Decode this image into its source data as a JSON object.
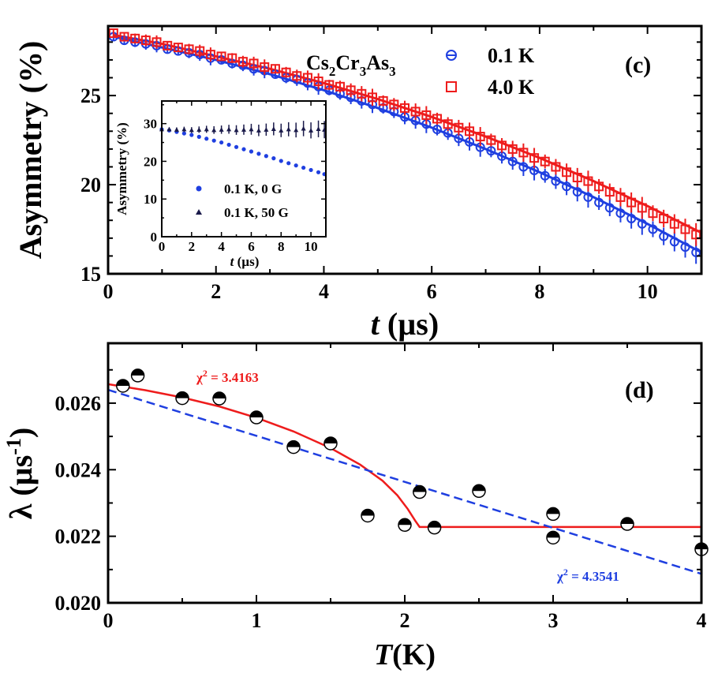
{
  "chart_data": [
    {
      "type": "scatter",
      "panel": "(c)",
      "compound": {
        "base": [
          "Cs",
          "Cr",
          "As"
        ],
        "subs": [
          "2",
          "3",
          "3"
        ]
      },
      "xlabel_italic": "t",
      "xlabel_unit": " (µs)",
      "ylabel": "Asymmetry (%)",
      "xlim": [
        0,
        11
      ],
      "ylim": [
        15,
        28.9
      ],
      "xticks": [
        0,
        2,
        4,
        6,
        8,
        10
      ],
      "yticks": [
        15,
        20,
        25
      ],
      "series": [
        {
          "name": "0.1 K",
          "color": "#1f3fe0",
          "marker": "circle-open",
          "fit": {
            "x": [
              0.1,
              1,
              2,
              3,
              4,
              5,
              6,
              7,
              8,
              9,
              10,
              11
            ],
            "y": [
              28.3,
              27.7,
              27.0,
              26.2,
              25.3,
              24.3,
              23.2,
              22.0,
              20.7,
              19.3,
              17.8,
              16.2
            ]
          },
          "x": [
            0.1,
            0.3,
            0.5,
            0.7,
            0.9,
            1.1,
            1.3,
            1.5,
            1.7,
            1.9,
            2.1,
            2.3,
            2.5,
            2.7,
            2.9,
            3.1,
            3.3,
            3.5,
            3.7,
            3.9,
            4.1,
            4.3,
            4.5,
            4.7,
            4.9,
            5.1,
            5.3,
            5.5,
            5.7,
            5.9,
            6.1,
            6.3,
            6.5,
            6.7,
            6.9,
            7.1,
            7.3,
            7.5,
            7.7,
            7.9,
            8.1,
            8.3,
            8.5,
            8.7,
            8.9,
            9.1,
            9.3,
            9.5,
            9.7,
            9.9,
            10.1,
            10.3,
            10.5,
            10.7,
            10.9
          ],
          "y": [
            28.3,
            28.1,
            28.0,
            27.9,
            27.8,
            27.6,
            27.5,
            27.4,
            27.3,
            27.1,
            27.0,
            26.8,
            26.7,
            26.5,
            26.4,
            26.2,
            26.0,
            25.9,
            25.7,
            25.5,
            25.3,
            25.1,
            24.9,
            24.7,
            24.5,
            24.3,
            24.1,
            23.8,
            23.6,
            23.4,
            23.1,
            22.9,
            22.6,
            22.4,
            22.1,
            21.9,
            21.6,
            21.3,
            21.0,
            20.8,
            20.5,
            20.2,
            19.9,
            19.6,
            19.3,
            19.0,
            18.7,
            18.4,
            18.1,
            17.8,
            17.5,
            17.1,
            16.8,
            16.5,
            16.2
          ]
        },
        {
          "name": "4.0 K",
          "color": "#ee1c1c",
          "marker": "square-open",
          "fit": {
            "x": [
              0.1,
              1,
              2,
              3,
              4,
              5,
              6,
              7,
              8,
              9,
              10,
              11
            ],
            "y": [
              28.4,
              27.9,
              27.2,
              26.5,
              25.7,
              24.8,
              23.8,
              22.7,
              21.5,
              20.2,
              18.8,
              17.3
            ]
          },
          "x": [
            0.1,
            0.3,
            0.5,
            0.7,
            0.9,
            1.1,
            1.3,
            1.5,
            1.7,
            1.9,
            2.1,
            2.3,
            2.5,
            2.7,
            2.9,
            3.1,
            3.3,
            3.5,
            3.7,
            3.9,
            4.1,
            4.3,
            4.5,
            4.7,
            4.9,
            5.1,
            5.3,
            5.5,
            5.7,
            5.9,
            6.1,
            6.3,
            6.5,
            6.7,
            6.9,
            7.1,
            7.3,
            7.5,
            7.7,
            7.9,
            8.1,
            8.3,
            8.5,
            8.7,
            8.9,
            9.1,
            9.3,
            9.5,
            9.7,
            9.9,
            10.1,
            10.3,
            10.5,
            10.7,
            10.9
          ],
          "y": [
            28.5,
            28.3,
            28.2,
            28.1,
            28.0,
            27.8,
            27.7,
            27.6,
            27.5,
            27.3,
            27.2,
            27.1,
            26.9,
            26.8,
            26.6,
            26.5,
            26.3,
            26.1,
            26.0,
            25.8,
            25.6,
            25.5,
            25.3,
            25.1,
            24.9,
            24.7,
            24.5,
            24.3,
            24.1,
            23.9,
            23.7,
            23.4,
            23.2,
            23.0,
            22.7,
            22.5,
            22.2,
            22.0,
            21.8,
            21.5,
            21.3,
            21.0,
            20.7,
            20.4,
            20.2,
            19.9,
            19.6,
            19.3,
            19.0,
            18.7,
            18.4,
            18.1,
            17.8,
            17.5,
            17.2
          ]
        }
      ]
    },
    {
      "type": "scatter",
      "panel": "inset",
      "xlabel_italic": "t",
      "xlabel_unit": " (µs)",
      "ylabel": "Asymmetry (%)",
      "xlim": [
        0,
        11
      ],
      "ylim": [
        0,
        36
      ],
      "xticks": [
        0,
        2,
        4,
        6,
        8,
        10
      ],
      "yticks": [
        0,
        10,
        20,
        30
      ],
      "series": [
        {
          "name": "0.1 K, 0 G",
          "color": "#1f3fe0",
          "marker": "circle-filled",
          "x": [
            0,
            0.5,
            1,
            1.5,
            2,
            2.5,
            3,
            3.5,
            4,
            4.5,
            5,
            5.5,
            6,
            6.5,
            7,
            7.5,
            8,
            8.5,
            9,
            9.5,
            10,
            10.5,
            10.9
          ],
          "y": [
            28.5,
            28.2,
            27.8,
            27.4,
            27.0,
            26.5,
            26.0,
            25.5,
            25.0,
            24.4,
            23.8,
            23.2,
            22.6,
            22.0,
            21.4,
            20.8,
            20.1,
            19.5,
            18.9,
            18.3,
            17.7,
            17.1,
            16.6
          ]
        },
        {
          "name": "0.1 K, 50 G",
          "color": "#1a1a4a",
          "marker": "triangle-filled",
          "x": [
            0,
            0.5,
            1,
            1.5,
            2,
            2.5,
            3,
            3.5,
            4,
            4.5,
            5,
            5.5,
            6,
            6.5,
            7,
            7.5,
            8,
            8.5,
            9,
            9.5,
            10,
            10.5,
            10.9
          ],
          "y": [
            28.5,
            28.5,
            28.4,
            28.5,
            28.3,
            28.4,
            28.5,
            28.3,
            28.4,
            28.5,
            28.3,
            28.4,
            28.5,
            28.2,
            28.4,
            28.6,
            28.2,
            28.5,
            28.3,
            28.7,
            28.2,
            28.6,
            28.4
          ]
        }
      ]
    },
    {
      "type": "scatter",
      "panel": "(d)",
      "xlabel_italic": "T",
      "xlabel_unit": "(K)",
      "ylabel": "λ (µs",
      "ylabel_sup": "-1",
      "ylabel_end": ")",
      "xlim": [
        0,
        4
      ],
      "ylim": [
        0.02,
        0.0278
      ],
      "xticks": [
        0,
        1,
        2,
        3,
        4
      ],
      "yticks": [
        0.02,
        0.022,
        0.024,
        0.026
      ],
      "ytick_labels": [
        "0.020",
        "0.022",
        "0.024",
        "0.026"
      ],
      "points": {
        "x": [
          0.1,
          0.2,
          0.5,
          0.75,
          1.0,
          1.25,
          1.5,
          1.75,
          2.0,
          2.1,
          2.2,
          2.5,
          3.0,
          3.0,
          3.5,
          4.0
        ],
        "y": [
          0.02652,
          0.02683,
          0.02615,
          0.02614,
          0.02557,
          0.02468,
          0.02479,
          0.02262,
          0.02234,
          0.02333,
          0.02226,
          0.02336,
          0.02267,
          0.02196,
          0.02237,
          0.02161
        ],
        "err": [
          0.00015,
          0.00015,
          0.00015,
          0.00015,
          0.00015,
          0.00015,
          0.00015,
          0.00015,
          0.00015,
          0.00015,
          0.00015,
          0.00015,
          0.00015,
          0.00015,
          0.00015,
          0.00015
        ]
      },
      "fits": [
        {
          "name": "χ² = 3.4163",
          "label": "χ",
          "label_sup": "2",
          "label_end": " = 3.4163",
          "color": "#ee1c1c",
          "style": "solid",
          "x": [
            0.0,
            0.25,
            0.5,
            0.75,
            1.0,
            1.25,
            1.5,
            1.7,
            1.85,
            1.95,
            2.02,
            2.07,
            2.1,
            2.1,
            4.0
          ],
          "y": [
            0.02657,
            0.02639,
            0.02617,
            0.0259,
            0.02556,
            0.02515,
            0.02465,
            0.02415,
            0.02367,
            0.02323,
            0.02282,
            0.02247,
            0.02228,
            0.02228,
            0.02228
          ]
        },
        {
          "name": "χ² = 4.3541",
          "label": "χ",
          "label_sup": "2",
          "label_end": " = 4.3541",
          "color": "#1f3fe0",
          "style": "dashed",
          "x": [
            0.0,
            4.0
          ],
          "y": [
            0.0264,
            0.02087
          ]
        }
      ]
    }
  ]
}
